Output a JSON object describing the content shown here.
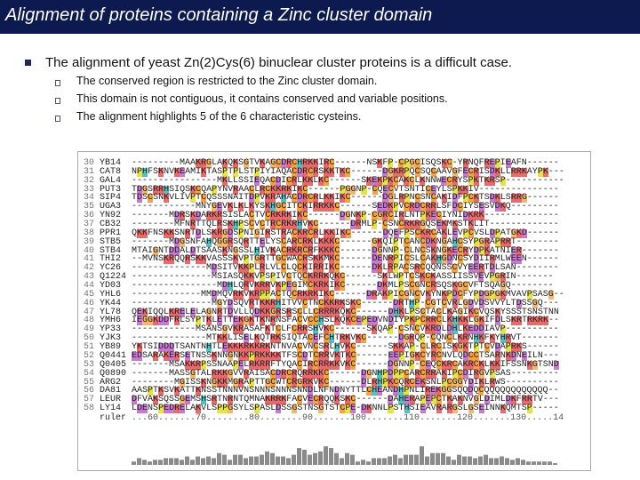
{
  "header": {
    "title": "Alignment of proteins containing a Zinc cluster domain"
  },
  "bullet": "The alignment of yeast Zn(2)Cys(6) binuclear cluster proteins is a difficult case.",
  "sub_bullets": [
    "The conserved region is restricted to the Zinc cluster domain.",
    "This domain is not contiguous, it contains conserved and variable positions.",
    "The alignment highlights  5 of the 6 characteristic cysteins."
  ],
  "alignment": {
    "rows": [
      {
        "number": 30,
        "name": "YB14",
        "sequence": "---------MAAKRGLAKQKSGTVKAGCDRCHRKKIRC------NSKFP-CPGCISQSKC-YRNQFREPIEAFN------"
      },
      {
        "number": 31,
        "name": "CAT8",
        "sequence": "NPHFSKNVKEAMIKTASPTPLSTPIYIAQACDRCRSKKTKC------DGKRPQCSQCAAVGFECRISDKLLRRKAYPK---"
      },
      {
        "number": 32,
        "name": "GAL4",
        "sequence": "----------------MKLLSSIEQACDICRLKKLKC------SKEKPKCAKCLKNNWECRYSPKTKRSP-----------"
      },
      {
        "number": 33,
        "name": "PUT3",
        "sequence": "TDGSRRHSIQSKCQAPYNVRAACLRCKKRKIKC------PGGNP-CQECVTSNTICEYLSPKKIV---------------"
      },
      {
        "number": 34,
        "name": "SIP4",
        "sequence": "TDSCSNKVLIVPTCQSSSNAITDPVKRAHACDRCRLKKIKC------DGLRPNCSNCAKIDFPCKTSDKLSRRG------"
      },
      {
        "number": 35,
        "name": "UGA3",
        "sequence": "------------MNYGEVKLKLKYSKHGCITCKIRRKKC------SEDKPVCRDCRRLSFDCIYSESVDKQ---------"
      },
      {
        "number": 36,
        "name": "YN92",
        "sequence": "-------MDRSKDARKRSISLACTVCRKRKIKC------DGNKP-CGRCIRLNTPKECIYNIDKRK--------------"
      },
      {
        "number": 37,
        "name": "CB32",
        "sequence": "--------MFNRTTQLRSKHPSCVCTRCRKRHVKC------DRMLP-CSNCRKRGQSEKMKSTKLIT-------------"
      },
      {
        "number": 38,
        "name": "PPR1",
        "sequence": "QKKFNSKKSNRTDLSKRGDSPNIGIRSTRACKRCRLKKIKC------DQEFPSCKRCAKLEVPCVSLDPATGKD------"
      },
      {
        "number": 39,
        "name": "STB5",
        "sequence": "-------MDGSNFAHQGGRSQRTTELYSCARCRKLKKKC------GKQIPTCANCDKNGAHCSYPGRAPRRT--------"
      },
      {
        "number": 40,
        "name": "STB4",
        "sequence": "MTAIGNTDDALDTSAASKNGSSLHIVKACRKRCRFKKKC------DGNNP-CLNCSKNGKECRYDPKATNIER-------"
      },
      {
        "number": 41,
        "name": "THI2",
        "sequence": "--MVNSKRQQRSKKVASSSKVPTGRTTGCWACRSKKMKC------DENRPICSLCAKHGDNCSYDIIRMLWEEN------"
      },
      {
        "number": 42,
        "name": "YC26",
        "sequence": "--------------MDSITVKKPLRLVLCLQCKIRRIKC------DKLRPACSRCQQNSSCVYEERTDLSAN--------"
      },
      {
        "number": 43,
        "name": "Q1224",
        "sequence": "---------------MSIASQKKVPSPIVCTQCKRRKQKC------SKLWPTCSKCKASSIISSVEVPGRIN-------"
      },
      {
        "number": 44,
        "name": "YD03",
        "sequence": "----------------MDHLQRVKRRVKPEGIMCKRKIKC------DKMLPSCGNCRSQSKGCVFTSQAGQ--------"
      },
      {
        "number": 45,
        "name": "YHL6",
        "sequence": "-------------MMDMQVRKVKRPPACTQCRKRKIKC------DRAKPICGNCVKYNKPDCFYPDGPGKMVAVPSASG--"
      },
      {
        "number": 46,
        "name": "YK44",
        "sequence": "---------------MGYDSQVRTKKRHITVVCTNCKKRKSKC------DRTHP-CGTCVRLGDVDSVVYLTDSSGQ---"
      },
      {
        "number": 47,
        "name": "YL78",
        "sequence": "QEKIQQLKRELELAGNRTDVLLQDKKGRSRSCLLCRRRKQKC------DHKLPSCTACLKAGIKCVQSKYSSSTSNSTNN"
      },
      {
        "number": 48,
        "name": "YMH6",
        "sequence": "IEGGKDDFRLSYPTKLETTEKGKTKNRNSFACVCCHSLKQKCEPEDVNDIYPKPCRRCLKHKKLGKIFDLSKRTRKRK--"
      },
      {
        "number": 49,
        "name": "YP33",
        "sequence": "------------MSANSGVKRASAFKTCLFCRRSHVKC------SKQAP-CSNCVKRDLDHLKEDDIAVP----------"
      },
      {
        "number": 50,
        "name": "YJK3",
        "sequence": "--------------MTKKLISELKQTRKSIQTACEFCHTRKVKC------DGRQP-CQNCLKRNHKFKYHRVT-------"
      },
      {
        "number": 51,
        "name": "YB89",
        "sequence": "YKTSIDDDTSANTNHTLEKKKRKKRKNTNVACVNCSRLHVKC------SKKAP-CLRCISKGKTPTCVDAPRKS------"
      },
      {
        "number": 52,
        "name": "Q0441",
        "sequence": "EDSARAKERSETNSSKNNGNKKPRKKKKTFSCDTCRRVKTKC------EEPIGKCYRCNVLQDCCTSARNKDNEILN---"
      },
      {
        "number": 53,
        "name": "Q0405",
        "sequence": "-------MSAKKRPSSNAAPELRKRRFTYQACIRCRRKKVKC------DGNNP-CEQCKRCAKRCKLKKIFSSNKGTSND"
      },
      {
        "number": 54,
        "name": "Q0890",
        "sequence": "-------MASSGTALRKKGVVRAISACDRCRQRRKKC------DGNHPDPPCARCRRAKIPCDIRGVPSAS---------"
      },
      {
        "number": 55,
        "name": "ARG2",
        "sequence": "--------MGISSKNGKKMGRAPTTGCWTCRGRKVKC------DLRHPKCQRCEKSNLPCGGYDIKLRWS----------"
      },
      {
        "number": 56,
        "name": "DA81",
        "sequence": "AASPTKSVKATTKNSSTNNNVNSNNNSNNNSNNDLNFNDNYTTLCHEANDHPNLIREKGGSQQDQCQQQQQQQQQQQQ--"
      },
      {
        "number": 57,
        "name": "LEUR",
        "sequence": "DFVAKSQSSGEMSHSRTNRNTQMNAKRRKFACVECRQQKSKC------DAHERAPEPCTKAKNVGLDIMLDKFRRTV---"
      },
      {
        "number": 58,
        "name": "LY14",
        "sequence": "LDENSPEDRELAKVLSPPGSYLSPASLDSSGSTNSGTSTCPE-DKNNLPSTHSIEAVRARGSLGSEINNKQMTSP-----"
      }
    ],
    "ruler": {
      "label": "ruler",
      "sequence": "...60.......70........80........90.......100.......110.......120.......130.....14"
    }
  }
}
